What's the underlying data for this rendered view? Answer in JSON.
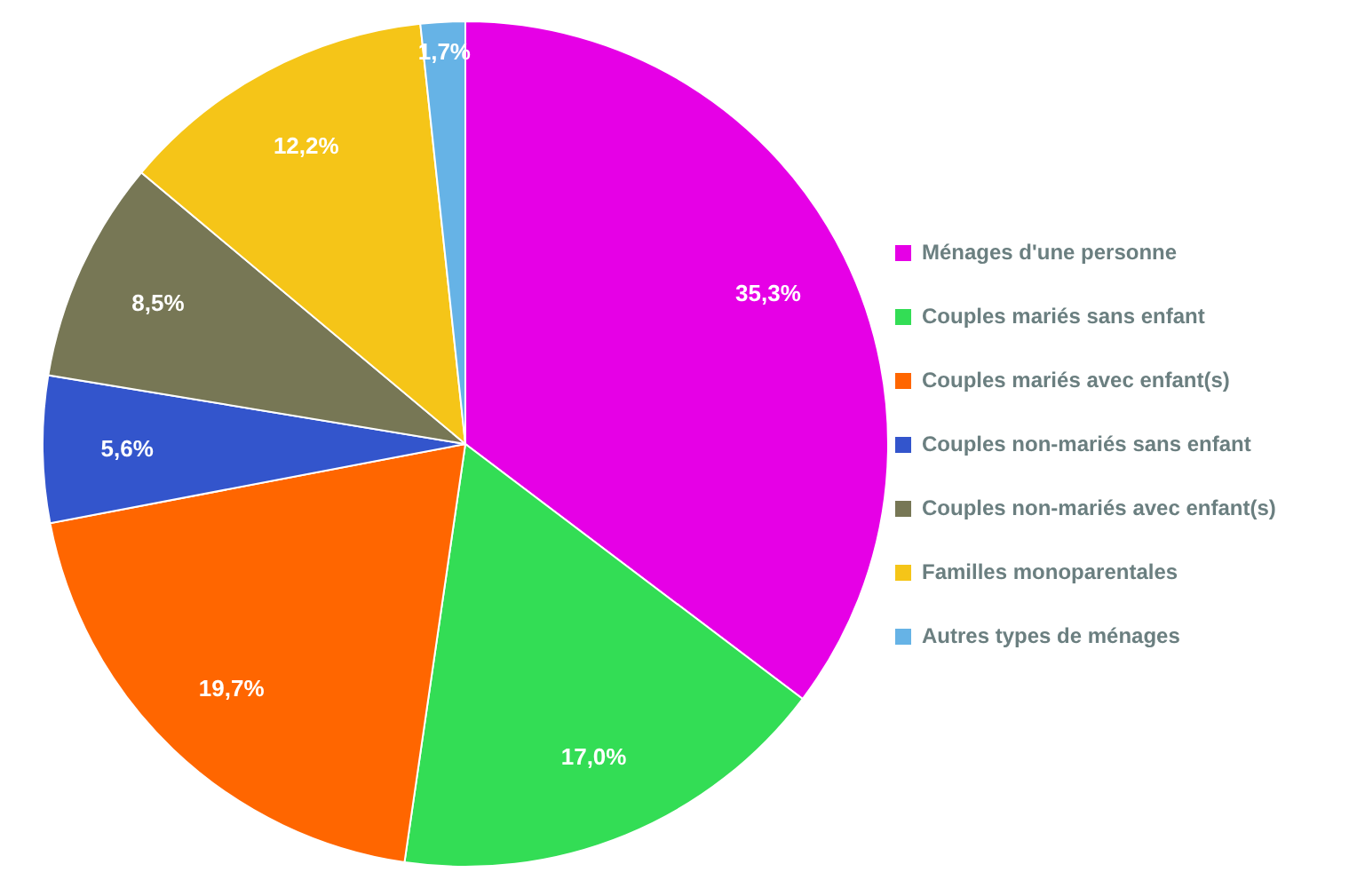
{
  "chart_data": {
    "type": "pie",
    "categories": [
      "Ménages d'une personne",
      "Couples mariés sans enfant",
      "Couples mariés avec enfant(s)",
      "Couples non-mariés sans enfant",
      "Couples non-mariés avec enfant(s)",
      "Familles monoparentales",
      "Autres types de ménages"
    ],
    "values": [
      35.3,
      17.0,
      19.7,
      5.6,
      8.5,
      12.2,
      1.7
    ],
    "colors": [
      "#e600e6",
      "#33dd55",
      "#ff6600",
      "#3355cc",
      "#777755",
      "#f5c518",
      "#66b3e6"
    ],
    "value_labels": [
      "35,3%",
      "17,0%",
      "19,7%",
      "5,6%",
      "8,5%",
      "12,2%",
      "1,7%"
    ],
    "legend": "right"
  }
}
